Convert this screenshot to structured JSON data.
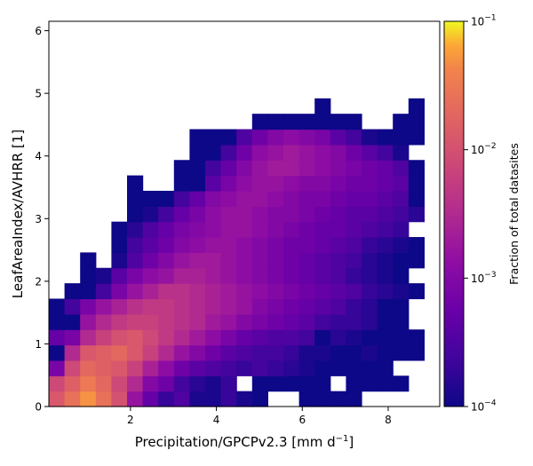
{
  "chart_data": {
    "type": "heatmap",
    "title": "",
    "xlabel": "Precipitation/GPCPv2.3 [mm d",
    "xlabel_unit_sup": "−1",
    "xlabel_suffix": "]",
    "ylabel": "LeafAreaIndex/AVHRR [1]",
    "xlim": [
      0.1,
      9.2
    ],
    "ylim": [
      0,
      6.15
    ],
    "x_ticks": [
      2,
      4,
      6,
      8
    ],
    "y_ticks": [
      0,
      1,
      2,
      3,
      4,
      5,
      6
    ],
    "bin_width_x": 0.364,
    "bin_height_y": 0.246,
    "colormap": "plasma",
    "colorbar": {
      "label": "Fraction of total datasites",
      "scale": "log",
      "range": [
        0.0001,
        0.1
      ],
      "ticks": [
        {
          "value": 0.0001,
          "base": "10",
          "exp": "−4"
        },
        {
          "value": 0.001,
          "base": "10",
          "exp": "−3"
        },
        {
          "value": 0.01,
          "base": "10",
          "exp": "−2"
        },
        {
          "value": 0.1,
          "base": "10",
          "exp": "−1"
        }
      ]
    },
    "legend": "none",
    "grid": false,
    "cells_log10_fraction_by_row_from_bottom": [
      [
        -1.9,
        -1.6,
        -1.3,
        -1.6,
        -2.0,
        -2.8,
        -3.3,
        -3.7,
        -3.5,
        -3.9,
        -3.9,
        -3.7,
        -3.9,
        -4.0,
        null,
        null,
        -4.0,
        -4.0,
        -4.0,
        -4.0,
        null,
        null,
        null,
        null
      ],
      [
        -2.1,
        -1.8,
        -1.5,
        -1.7,
        -2.1,
        -2.5,
        -3.0,
        -3.2,
        -3.6,
        -3.8,
        -3.9,
        -3.7,
        null,
        -4.0,
        -4.0,
        -4.0,
        -4.0,
        -4.0,
        null,
        -4.0,
        -4.0,
        -4.0,
        -4.0,
        null
      ],
      [
        -3.1,
        -2.1,
        -1.7,
        -1.8,
        -1.9,
        -2.2,
        -2.6,
        -2.9,
        -3.2,
        -3.4,
        -3.5,
        -3.6,
        -3.7,
        -3.6,
        -3.7,
        -3.8,
        -3.9,
        -4.0,
        -4.0,
        -4.0,
        -4.0,
        -4.0,
        null,
        null
      ],
      [
        -4.0,
        -2.5,
        -1.9,
        -1.8,
        -1.7,
        -1.9,
        -2.2,
        -2.5,
        -2.8,
        -3.0,
        -3.2,
        -3.4,
        -3.5,
        -3.6,
        -3.6,
        -3.7,
        -3.9,
        -3.9,
        -4.0,
        -4.0,
        -3.9,
        -4.0,
        -4.0,
        -4.0
      ],
      [
        -3.3,
        -3.1,
        -2.5,
        -2.2,
        -2.0,
        -1.9,
        -2.1,
        -2.3,
        -2.5,
        -2.7,
        -2.9,
        -3.1,
        -3.3,
        -3.4,
        -3.5,
        -3.5,
        -3.6,
        -4.0,
        -3.8,
        -3.9,
        -4.0,
        -4.0,
        -4.0,
        -4.0
      ],
      [
        -4.0,
        -4.0,
        -2.8,
        -2.5,
        -2.3,
        -2.2,
        -2.2,
        -2.3,
        -2.4,
        -2.5,
        -2.7,
        -2.8,
        -3.0,
        -3.1,
        -3.2,
        -3.3,
        -3.4,
        -3.6,
        -3.7,
        -3.7,
        -3.8,
        -4.0,
        -4.0,
        null
      ],
      [
        -4.0,
        -3.6,
        -3.1,
        -2.8,
        -2.6,
        -2.4,
        -2.3,
        -2.3,
        -2.4,
        -2.5,
        -2.6,
        -2.7,
        -2.8,
        -3.0,
        -3.1,
        -3.2,
        -3.3,
        -3.4,
        -3.5,
        -3.7,
        -3.8,
        -4.0,
        -4.0,
        null
      ],
      [
        null,
        -4.0,
        -4.0,
        -3.6,
        -3.1,
        -2.8,
        -2.6,
        -2.4,
        -2.4,
        -2.5,
        -2.6,
        -2.7,
        -2.8,
        -2.9,
        -3.0,
        -3.1,
        -3.2,
        -3.3,
        -3.4,
        -3.5,
        -3.7,
        -3.8,
        -3.9,
        -4.0
      ],
      [
        null,
        null,
        -4.0,
        -3.9,
        -3.4,
        -3.1,
        -2.9,
        -2.8,
        -2.6,
        -2.6,
        -2.7,
        -2.8,
        -2.9,
        -3.0,
        -3.1,
        -3.2,
        -3.3,
        -3.4,
        -3.5,
        -3.7,
        -3.8,
        -3.9,
        -4.0,
        null
      ],
      [
        null,
        null,
        -4.0,
        null,
        -3.9,
        -3.5,
        -3.2,
        -3.0,
        -2.8,
        -2.7,
        -2.7,
        -2.8,
        -2.9,
        -3.0,
        -3.1,
        -3.2,
        -3.3,
        -3.4,
        -3.5,
        -3.6,
        -3.8,
        -3.9,
        -4.0,
        -4.0
      ],
      [
        null,
        null,
        null,
        null,
        -4.0,
        -3.6,
        -3.4,
        -3.2,
        -3.0,
        -2.9,
        -2.8,
        -2.8,
        -2.9,
        -3.0,
        -3.1,
        -3.2,
        -3.2,
        -3.3,
        -3.4,
        -3.5,
        -3.7,
        -3.8,
        -3.9,
        -4.0
      ],
      [
        null,
        null,
        null,
        null,
        -4.0,
        -3.8,
        -3.5,
        -3.3,
        -3.1,
        -3.0,
        -2.9,
        -2.8,
        -2.8,
        -2.9,
        -3.0,
        -3.1,
        -3.2,
        -3.3,
        -3.3,
        -3.4,
        -3.5,
        -3.6,
        -3.7,
        null
      ],
      [
        null,
        null,
        null,
        null,
        null,
        -4.0,
        -3.9,
        -3.6,
        -3.3,
        -3.1,
        -2.9,
        -2.8,
        -2.8,
        -2.9,
        -3.0,
        -3.0,
        -3.1,
        -3.2,
        -3.3,
        -3.4,
        -3.4,
        -3.5,
        -3.6,
        -3.8
      ],
      [
        null,
        null,
        null,
        null,
        null,
        -4.0,
        -4.0,
        -4.0,
        -3.6,
        -3.3,
        -3.0,
        -2.9,
        -2.8,
        -2.8,
        -2.9,
        -3.0,
        -3.1,
        -3.1,
        -3.2,
        -3.3,
        -3.3,
        -3.4,
        -3.5,
        -4.0
      ],
      [
        null,
        null,
        null,
        null,
        null,
        -4.0,
        null,
        null,
        -4.0,
        -4.0,
        -3.4,
        -3.1,
        -2.9,
        -2.8,
        -2.8,
        -2.9,
        -3.0,
        -3.0,
        -3.1,
        -3.2,
        -3.2,
        -3.3,
        -3.4,
        -4.0
      ],
      [
        null,
        null,
        null,
        null,
        null,
        null,
        null,
        null,
        -4.0,
        -4.0,
        -3.6,
        -3.3,
        -3.0,
        -2.8,
        -2.7,
        -2.7,
        -2.8,
        -2.9,
        -3.0,
        -3.1,
        -3.2,
        -3.3,
        -3.5,
        -4.0
      ],
      [
        null,
        null,
        null,
        null,
        null,
        null,
        null,
        null,
        null,
        -4.0,
        -4.0,
        -3.6,
        -3.2,
        -2.9,
        -2.8,
        -2.7,
        -2.8,
        -2.9,
        -3.0,
        -3.2,
        -3.4,
        -3.6,
        -3.9,
        null
      ],
      [
        null,
        null,
        null,
        null,
        null,
        null,
        null,
        null,
        null,
        -4.0,
        -4.0,
        -4.0,
        -3.5,
        -3.2,
        -3.0,
        -2.9,
        -3.0,
        -3.1,
        -3.4,
        -3.6,
        -3.9,
        -4.0,
        -4.0,
        -4.0
      ],
      [
        null,
        null,
        null,
        null,
        null,
        null,
        null,
        null,
        null,
        null,
        null,
        null,
        null,
        -4.0,
        -4.0,
        -4.0,
        -4.0,
        -4.0,
        -4.0,
        -4.0,
        null,
        null,
        -4.0,
        -4.0
      ],
      [
        null,
        null,
        null,
        null,
        null,
        null,
        null,
        null,
        null,
        null,
        null,
        null,
        null,
        null,
        null,
        null,
        null,
        -4.0,
        null,
        null,
        null,
        null,
        null,
        -4.0
      ]
    ]
  }
}
